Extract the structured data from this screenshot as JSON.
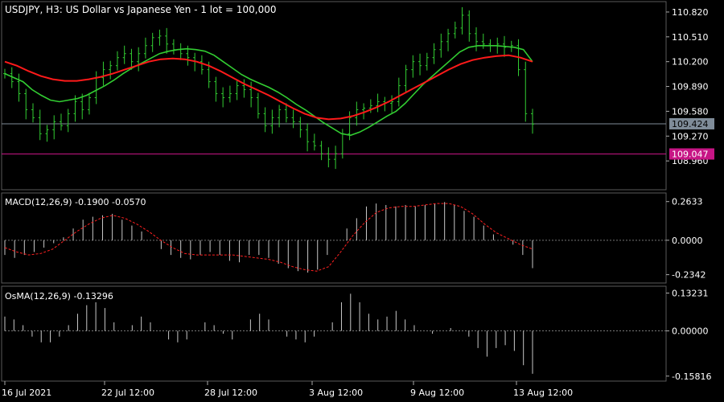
{
  "chart_data": {
    "type": "line",
    "main": {
      "title": "USDJPY, H3:  US Dollar vs Japanese Yen - 1 lot = 100,000",
      "y_ticks": [
        {
          "value": 110.82,
          "label": "110.820"
        },
        {
          "value": 110.51,
          "label": "110.510"
        },
        {
          "value": 110.2,
          "label": "110.200"
        },
        {
          "value": 109.89,
          "label": "109.890"
        },
        {
          "value": 109.58,
          "label": "109.580"
        },
        {
          "value": 109.27,
          "label": "109.270"
        },
        {
          "value": 108.96,
          "label": "108.960"
        }
      ],
      "ylim": [
        108.6,
        110.95
      ],
      "price_lines": [
        {
          "name": "bid",
          "value": 109.424,
          "label": "109.424",
          "color": "#7f8c99"
        },
        {
          "name": "level",
          "value": 109.047,
          "label": "109.047",
          "color": "#c71585"
        }
      ],
      "close": [
        110.05,
        109.95,
        109.8,
        109.6,
        109.5,
        109.3,
        109.35,
        109.45,
        109.4,
        109.55,
        109.7,
        109.6,
        109.75,
        110.0,
        110.1,
        110.15,
        110.25,
        110.3,
        110.2,
        110.3,
        110.4,
        110.5,
        110.52,
        110.42,
        110.35,
        110.3,
        110.25,
        110.2,
        110.1,
        109.95,
        109.8,
        109.75,
        109.8,
        109.9,
        109.85,
        109.75,
        109.55,
        109.4,
        109.5,
        109.6,
        109.5,
        109.45,
        109.35,
        109.2,
        109.15,
        109.05,
        108.98,
        109.05,
        109.3,
        109.5,
        109.6,
        109.62,
        109.65,
        109.7,
        109.68,
        109.7,
        109.9,
        110.1,
        110.2,
        110.15,
        110.25,
        110.35,
        110.45,
        110.55,
        110.62,
        110.78,
        110.55,
        110.45,
        110.42,
        110.4,
        110.42,
        110.38,
        110.4,
        110.1,
        109.55,
        109.42
      ],
      "ma_fast": {
        "name": "MA 10",
        "color": "#32cd32",
        "values": [
          110.05,
          110.0,
          109.95,
          109.85,
          109.78,
          109.72,
          109.7,
          109.72,
          109.74,
          109.78,
          109.84,
          109.9,
          109.97,
          110.05,
          110.12,
          110.18,
          110.24,
          110.3,
          110.33,
          110.35,
          110.36,
          110.35,
          110.33,
          110.28,
          110.2,
          110.12,
          110.04,
          109.98,
          109.93,
          109.88,
          109.82,
          109.75,
          109.67,
          109.6,
          109.52,
          109.44,
          109.37,
          109.3,
          109.28,
          109.32,
          109.38,
          109.45,
          109.52,
          109.58,
          109.68,
          109.8,
          109.92,
          110.02,
          110.12,
          110.22,
          110.32,
          110.38,
          110.4,
          110.4,
          110.4,
          110.39,
          110.38,
          110.35,
          110.2
        ]
      },
      "ma_slow": {
        "name": "MA 30",
        "color": "#ff1a1a",
        "values": [
          110.2,
          110.15,
          110.08,
          110.02,
          109.98,
          109.96,
          109.96,
          109.98,
          110.01,
          110.05,
          110.1,
          110.15,
          110.2,
          110.23,
          110.24,
          110.23,
          110.2,
          110.15,
          110.08,
          110.0,
          109.92,
          109.85,
          109.78,
          109.7,
          109.62,
          109.55,
          109.5,
          109.48,
          109.49,
          109.52,
          109.57,
          109.63,
          109.7,
          109.78,
          109.86,
          109.94,
          110.02,
          110.1,
          110.17,
          110.22,
          110.25,
          110.27,
          110.28,
          110.25,
          110.2
        ]
      }
    },
    "macd": {
      "label": "MACD(12,26,9) -0.1900 -0.0570",
      "y_ticks": [
        {
          "value": 0.2633,
          "label": "0.2633"
        },
        {
          "value": 0.0,
          "label": "0.0000"
        },
        {
          "value": -0.2342,
          "label": "-0.2342"
        }
      ],
      "ylim": [
        -0.28,
        0.3
      ],
      "histogram": [
        -0.1,
        -0.12,
        -0.1,
        -0.08,
        -0.05,
        -0.02,
        0.02,
        0.08,
        0.14,
        0.16,
        0.17,
        0.18,
        0.14,
        0.1,
        0.06,
        0.0,
        -0.06,
        -0.1,
        -0.12,
        -0.13,
        -0.1,
        -0.08,
        -0.1,
        -0.14,
        -0.15,
        -0.1,
        -0.1,
        -0.12,
        -0.16,
        -0.19,
        -0.21,
        -0.22,
        -0.2,
        -0.1,
        0.0,
        0.08,
        0.15,
        0.23,
        0.25,
        0.24,
        0.23,
        0.24,
        0.23,
        0.24,
        0.25,
        0.26,
        0.24,
        0.2,
        0.16,
        0.1,
        0.04,
        0.0,
        -0.03,
        -0.1,
        -0.19
      ],
      "signal": [
        -0.05,
        -0.08,
        -0.1,
        -0.09,
        -0.06,
        0.0,
        0.06,
        0.11,
        0.15,
        0.17,
        0.15,
        0.11,
        0.06,
        0.0,
        -0.05,
        -0.09,
        -0.1,
        -0.1,
        -0.1,
        -0.1,
        -0.11,
        -0.12,
        -0.13,
        -0.15,
        -0.18,
        -0.2,
        -0.21,
        -0.18,
        -0.08,
        0.03,
        0.12,
        0.19,
        0.22,
        0.23,
        0.23,
        0.24,
        0.25,
        0.25,
        0.23,
        0.18,
        0.11,
        0.05,
        0.01,
        -0.03,
        -0.06
      ]
    },
    "osma": {
      "label": "OsMA(12,26,9) -0.13296",
      "y_ticks": [
        {
          "value": 0.13231,
          "label": "0.13231"
        },
        {
          "value": 0.0,
          "label": "0.00000"
        },
        {
          "value": -0.15816,
          "label": "-0.15816"
        }
      ],
      "ylim": [
        -0.17,
        0.145
      ],
      "histogram": [
        0.05,
        0.04,
        0.02,
        -0.02,
        -0.04,
        -0.04,
        -0.02,
        0.02,
        0.06,
        0.09,
        0.1,
        0.08,
        0.03,
        0.0,
        0.02,
        0.05,
        0.03,
        0.0,
        -0.03,
        -0.04,
        -0.03,
        0.0,
        0.03,
        0.02,
        -0.01,
        -0.03,
        0.0,
        0.04,
        0.06,
        0.04,
        0.0,
        -0.02,
        -0.03,
        -0.04,
        -0.02,
        0.0,
        0.03,
        0.1,
        0.13,
        0.1,
        0.06,
        0.04,
        0.05,
        0.07,
        0.04,
        0.02,
        0.0,
        -0.01,
        0.0,
        0.01,
        0.0,
        -0.02,
        -0.06,
        -0.09,
        -0.06,
        -0.05,
        -0.07,
        -0.12,
        -0.15
      ]
    },
    "x_ticks": [
      "16 Jul 2021",
      "22 Jul 12:00",
      "28 Jul 12:00",
      "3 Aug 12:00",
      "9 Aug 12:00",
      "13 Aug 12:00"
    ]
  }
}
